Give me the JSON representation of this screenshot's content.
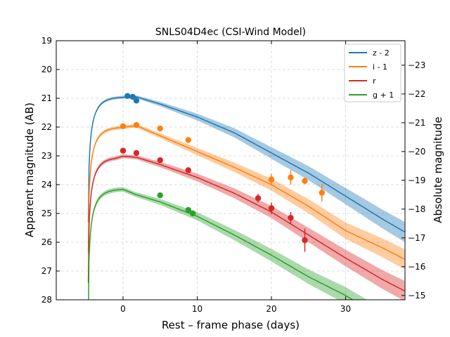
{
  "chart_data": {
    "type": "line",
    "title": "SNLS04D4ec (CSI-Wind Model)",
    "xlabel": "Rest – frame phase (days)",
    "ylabel": "Apparent magnitude (AB)",
    "ylabel_right": "Absolute magnitude",
    "xlim": [
      -9,
      38
    ],
    "ylim": [
      28,
      19
    ],
    "ylim_right": [
      -14.85,
      -23.85
    ],
    "grid": true,
    "y_inverted": true,
    "legend_position": "top-right",
    "x_ticks": [
      0,
      10,
      20,
      30
    ],
    "y_ticks": [
      19,
      20,
      21,
      22,
      23,
      24,
      25,
      26,
      27,
      28
    ],
    "y_right_ticks": [
      -23,
      -22,
      -21,
      -20,
      -19,
      -18,
      -17,
      -16,
      -15
    ],
    "model": {
      "rise_start": -4.7,
      "peak_phase": 1.8,
      "rise_tau": 1.1
    },
    "series": [
      {
        "name": "z - 2",
        "color": "#1f77b4",
        "band_width": [
          0.05,
          0.35
        ],
        "model": [
          [
            1.8,
            20.95
          ],
          [
            5,
            21.2
          ],
          [
            10,
            21.65
          ],
          [
            15,
            22.2
          ],
          [
            20,
            22.9
          ],
          [
            25,
            23.6
          ],
          [
            30,
            24.4
          ],
          [
            35,
            25.2
          ],
          [
            38,
            25.65
          ]
        ],
        "points": [
          {
            "x": 0.6,
            "y": 20.92,
            "err": 0.05
          },
          {
            "x": 1.3,
            "y": 20.95,
            "err": 0.05
          },
          {
            "x": 1.8,
            "y": 21.08,
            "err": 0.05
          }
        ]
      },
      {
        "name": "i - 1",
        "color": "#ff7f0e",
        "band_width": [
          0.06,
          0.35
        ],
        "model": [
          [
            -0.5,
            22.0
          ],
          [
            1.8,
            21.95
          ],
          [
            5,
            22.3
          ],
          [
            10,
            22.85
          ],
          [
            15,
            23.4
          ],
          [
            20,
            24.0
          ],
          [
            25,
            24.75
          ],
          [
            30,
            25.6
          ],
          [
            35,
            26.2
          ],
          [
            38,
            26.6
          ]
        ],
        "points": [
          {
            "x": 0.0,
            "y": 21.97,
            "err": 0.06
          },
          {
            "x": 1.8,
            "y": 21.93,
            "err": 0.06
          },
          {
            "x": 5.0,
            "y": 22.05,
            "err": 0.06
          },
          {
            "x": 8.8,
            "y": 22.45,
            "err": 0.08
          },
          {
            "x": 20.0,
            "y": 23.82,
            "err": 0.2
          },
          {
            "x": 22.6,
            "y": 23.75,
            "err": 0.25
          },
          {
            "x": 24.5,
            "y": 23.87,
            "err": 0.12
          },
          {
            "x": 26.8,
            "y": 24.28,
            "err": 0.3
          }
        ]
      },
      {
        "name": "r",
        "color": "#d62728",
        "band_width": [
          0.07,
          0.35
        ],
        "model": [
          [
            -1,
            23.05
          ],
          [
            0,
            23.0
          ],
          [
            1.8,
            23.05
          ],
          [
            5,
            23.3
          ],
          [
            10,
            23.75
          ],
          [
            15,
            24.3
          ],
          [
            20,
            24.95
          ],
          [
            25,
            25.75
          ],
          [
            30,
            26.55
          ],
          [
            35,
            27.3
          ],
          [
            38,
            27.7
          ]
        ],
        "points": [
          {
            "x": 0.0,
            "y": 22.82,
            "err": 0.06
          },
          {
            "x": 1.8,
            "y": 22.9,
            "err": 0.06
          },
          {
            "x": 5.0,
            "y": 23.15,
            "err": 0.07
          },
          {
            "x": 8.8,
            "y": 23.5,
            "err": 0.08
          },
          {
            "x": 18.2,
            "y": 24.47,
            "err": 0.15
          },
          {
            "x": 20.0,
            "y": 24.82,
            "err": 0.2
          },
          {
            "x": 22.6,
            "y": 25.15,
            "err": 0.2
          },
          {
            "x": 24.5,
            "y": 25.93,
            "err": 0.4
          }
        ]
      },
      {
        "name": "g + 1",
        "color": "#2ca02c",
        "band_width": [
          0.08,
          0.35
        ],
        "model": [
          [
            -1.5,
            24.15
          ],
          [
            0,
            24.15
          ],
          [
            1.8,
            24.35
          ],
          [
            5,
            24.6
          ],
          [
            10,
            25.1
          ],
          [
            15,
            25.75
          ],
          [
            20,
            26.45
          ],
          [
            25,
            27.2
          ],
          [
            30,
            27.85
          ],
          [
            32.2,
            28.2
          ]
        ],
        "points": [
          {
            "x": 5.0,
            "y": 24.37,
            "err": 0.07
          },
          {
            "x": 8.8,
            "y": 24.88,
            "err": 0.08
          },
          {
            "x": 9.4,
            "y": 25.0,
            "err": 0.08
          }
        ]
      }
    ]
  }
}
